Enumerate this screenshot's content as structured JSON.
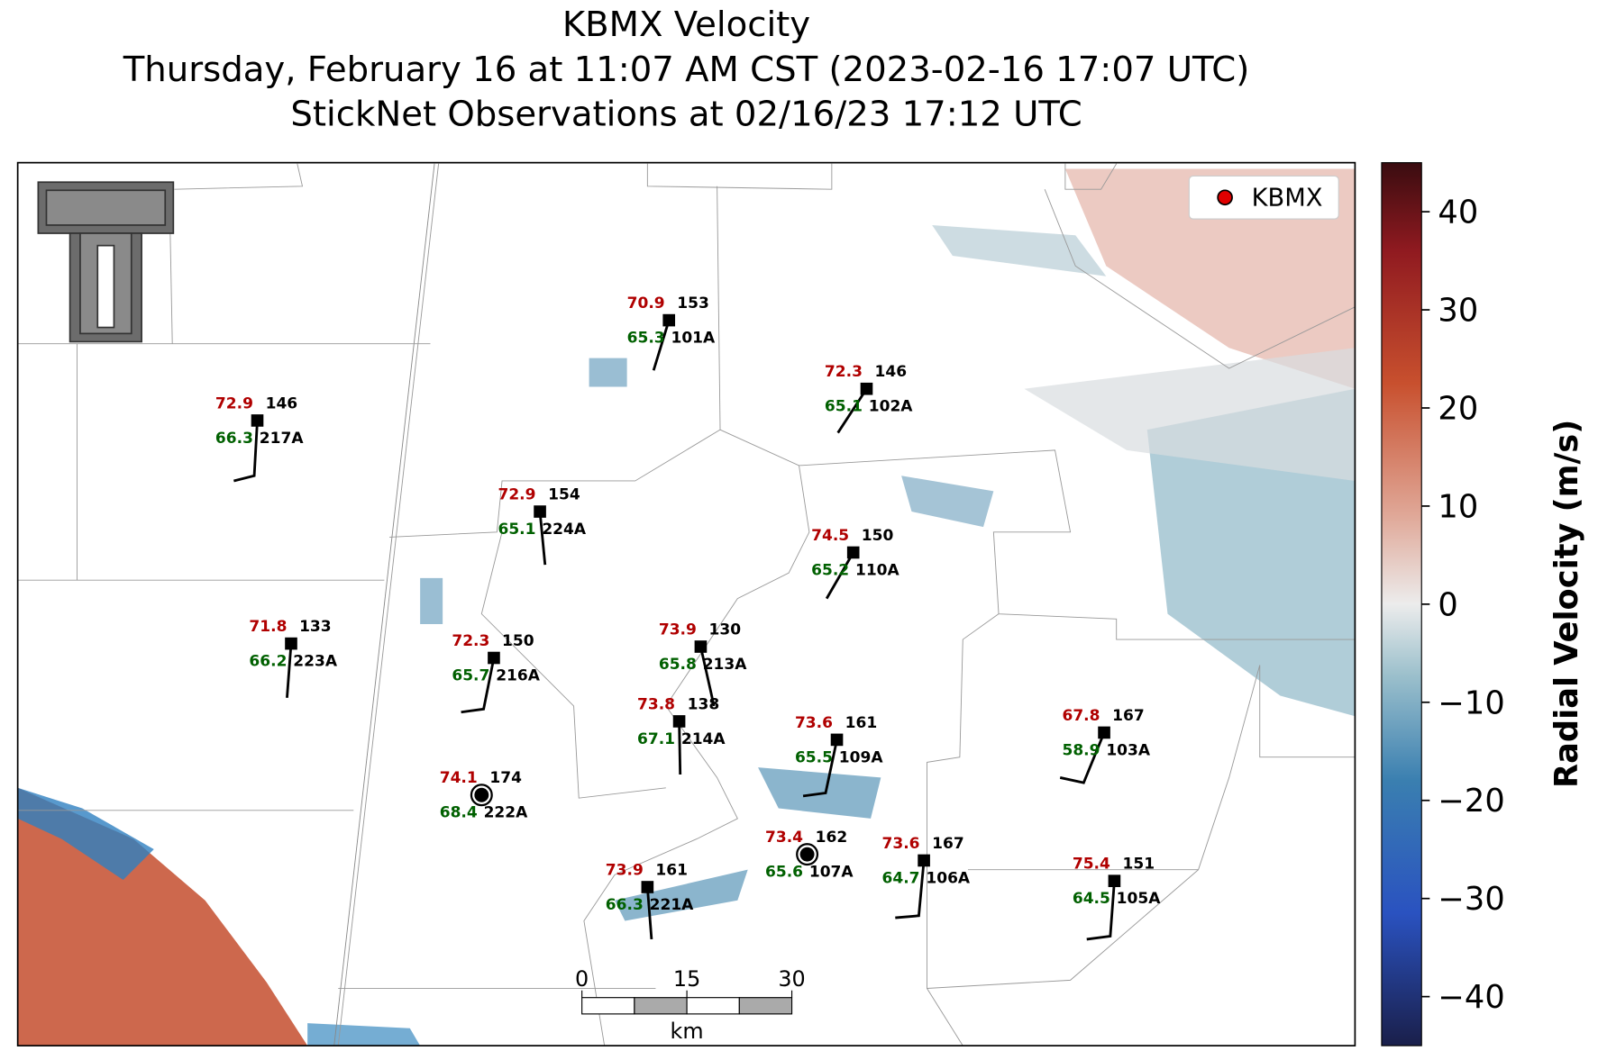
{
  "title": [
    "KBMX Velocity",
    "Thursday, February 16 at 11:07 AM CST (2023-02-16 17:07 UTC)",
    "StickNet Observations at 02/16/23 17:12 UTC"
  ],
  "legend": {
    "label": "KBMX",
    "color": "#e00000"
  },
  "colorbar": {
    "label": "Radial Velocity (m/s)",
    "lim": [
      -45,
      45
    ],
    "ticks": [
      {
        "value": 40,
        "label": "40"
      },
      {
        "value": 30,
        "label": "30"
      },
      {
        "value": 20,
        "label": "20"
      },
      {
        "value": 10,
        "label": "10"
      },
      {
        "value": 0,
        "label": "0"
      },
      {
        "value": -10,
        "label": "−10"
      },
      {
        "value": -20,
        "label": "−20"
      },
      {
        "value": -30,
        "label": "−30"
      },
      {
        "value": -40,
        "label": "−40"
      }
    ]
  },
  "scale_bar": {
    "lim": [
      0,
      30
    ],
    "ticks": [
      0,
      15,
      30
    ],
    "unit": "km"
  },
  "stations": [
    {
      "temp": "70.9",
      "dew": "65.3",
      "value": "153",
      "id": "101A"
    },
    {
      "temp": "72.3",
      "dew": "65.1",
      "value": "146",
      "id": "102A"
    },
    {
      "temp": "72.9",
      "dew": "66.3",
      "value": "146",
      "id": "217A"
    },
    {
      "temp": "72.9",
      "dew": "65.1",
      "value": "154",
      "id": "224A"
    },
    {
      "temp": "74.5",
      "dew": "65.2",
      "value": "150",
      "id": "110A"
    },
    {
      "temp": "71.8",
      "dew": "66.2",
      "value": "133",
      "id": "223A"
    },
    {
      "temp": "72.3",
      "dew": "65.7",
      "value": "150",
      "id": "216A"
    },
    {
      "temp": "73.9",
      "dew": "65.8",
      "value": "130",
      "id": "213A"
    },
    {
      "temp": "73.8",
      "dew": "67.1",
      "value": "138",
      "id": "214A"
    },
    {
      "temp": "73.6",
      "dew": "65.5",
      "value": "161",
      "id": "109A"
    },
    {
      "temp": "67.8",
      "dew": "58.9",
      "value": "167",
      "id": "103A"
    },
    {
      "temp": "74.1",
      "dew": "68.4",
      "value": "174",
      "id": "222A"
    },
    {
      "temp": "73.4",
      "dew": "65.6",
      "value": "162",
      "id": "107A"
    },
    {
      "temp": "73.6",
      "dew": "64.7",
      "value": "167",
      "id": "106A"
    },
    {
      "temp": "73.9",
      "dew": "66.3",
      "value": "161",
      "id": "221A"
    },
    {
      "temp": "75.4",
      "dew": "64.5",
      "value": "151",
      "id": "105A"
    }
  ]
}
